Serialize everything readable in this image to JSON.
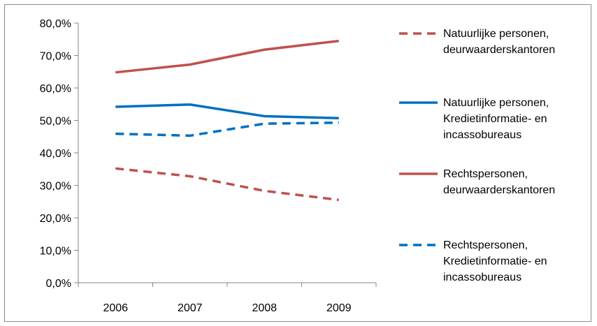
{
  "chart_data": {
    "type": "line",
    "categories": [
      "2006",
      "2007",
      "2008",
      "2009"
    ],
    "y_ticks": [
      "0,0%",
      "10,0%",
      "20,0%",
      "30,0%",
      "40,0%",
      "50,0%",
      "60,0%",
      "70,0%",
      "80,0%"
    ],
    "ylim": [
      0,
      80
    ],
    "grid": false,
    "legend_position": "right",
    "series": [
      {
        "name_lines": [
          "Natuurlijke personen,",
          "deurwaarderskantoren"
        ],
        "color": "#c0504d",
        "dash": true,
        "values": [
          35.2,
          32.8,
          28.3,
          25.5
        ]
      },
      {
        "name_lines": [
          "Natuurlijke personen,",
          "Kredietinformatie- en",
          "incassobureaus"
        ],
        "color": "#0070c0",
        "dash": false,
        "values": [
          54.2,
          54.9,
          51.3,
          50.7
        ]
      },
      {
        "name_lines": [
          "Rechtspersonen,",
          "deurwaarderskantoren"
        ],
        "color": "#c0504d",
        "dash": false,
        "values": [
          64.8,
          67.2,
          71.8,
          74.5
        ]
      },
      {
        "name_lines": [
          "Rechtspersonen,",
          "Kredietinformatie- en",
          "incassobureaus"
        ],
        "color": "#0070c0",
        "dash": true,
        "values": [
          45.9,
          45.3,
          49.0,
          49.3
        ]
      }
    ]
  }
}
